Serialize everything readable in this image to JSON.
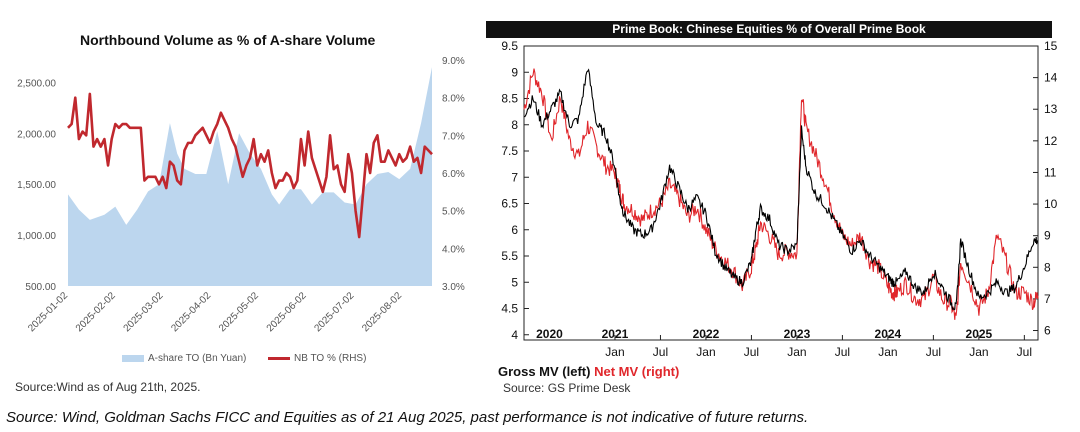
{
  "footer": {
    "note": "Source: Wind, Goldman Sachs FICC and Equities as of 21 Aug 2025, past performance is not indicative of future returns."
  },
  "colors": {
    "area_fill": "#bcd6ee",
    "nb_line": "#c0282e",
    "gross_line": "#000000",
    "net_line": "#e0262b"
  },
  "chart_data": [
    {
      "type": "area",
      "title": "Northbound Volume as % of A-share Volume",
      "source": "Source:Wind as of Aug 21th, 2025.",
      "x_tick_labels": [
        "2025-01-02",
        "2025-02-02",
        "2025-03-02",
        "2025-04-02",
        "2025-05-02",
        "2025-06-02",
        "2025-07-02",
        "2025-08-02"
      ],
      "y_left": {
        "ticks": [
          "500.00",
          "1,000.00",
          "1,500.00",
          "2,000.00",
          "2,500.00"
        ],
        "range": [
          500,
          2720
        ]
      },
      "y_right": {
        "ticks": [
          "3.0%",
          "4.0%",
          "5.0%",
          "6.0%",
          "7.0%",
          "8.0%",
          "9.0%"
        ],
        "range": [
          3.0,
          9.0
        ]
      },
      "series": [
        {
          "name": "A-share TO (Bn Yuan)",
          "type": "area",
          "axis": "left",
          "x": [
            0,
            3,
            6,
            10,
            13,
            16,
            19,
            22,
            25,
            28,
            30,
            32,
            35,
            38,
            41,
            44,
            47,
            50,
            53,
            56,
            58,
            61,
            64,
            67,
            70,
            73,
            76,
            79,
            82,
            85,
            88,
            91,
            94,
            97,
            100
          ],
          "values": [
            1400,
            1250,
            1150,
            1200,
            1280,
            1100,
            1250,
            1430,
            1500,
            2100,
            1800,
            1650,
            1600,
            1600,
            2020,
            1500,
            2000,
            1800,
            1650,
            1400,
            1300,
            1450,
            1450,
            1300,
            1420,
            1420,
            1320,
            1300,
            1500,
            1600,
            1620,
            1550,
            1650,
            2100,
            2650
          ]
        },
        {
          "name": "NB TO % (RHS)",
          "type": "line",
          "axis": "right",
          "x": [
            0,
            1,
            2,
            3,
            4,
            5,
            6,
            7,
            8,
            9,
            10,
            11,
            12,
            13,
            14,
            15,
            16,
            17,
            18,
            19,
            20,
            21,
            22,
            23,
            24,
            25,
            26,
            27,
            28,
            29,
            30,
            31,
            32,
            33,
            34,
            35,
            36,
            37,
            38,
            39,
            40,
            41,
            42,
            43,
            44,
            45,
            46,
            47,
            48,
            49,
            50,
            51,
            52,
            53,
            54,
            55,
            56,
            57,
            58,
            59,
            60,
            61,
            62,
            63,
            64,
            65,
            66,
            67,
            68,
            69,
            70,
            71,
            72,
            73,
            74,
            75,
            76,
            77,
            78,
            79,
            80,
            81,
            82,
            83,
            84,
            85,
            86,
            87,
            88,
            89,
            90,
            91,
            92,
            93,
            94,
            95,
            96,
            97,
            98,
            99,
            100
          ],
          "values": [
            7.2,
            7.3,
            8.0,
            6.9,
            7.1,
            7.0,
            8.1,
            6.7,
            6.9,
            6.7,
            6.9,
            6.2,
            6.9,
            7.3,
            7.2,
            7.3,
            7.3,
            7.2,
            7.2,
            7.2,
            7.2,
            5.8,
            5.9,
            5.9,
            5.9,
            5.7,
            5.9,
            5.6,
            6.3,
            6.2,
            5.8,
            5.7,
            6.6,
            6.8,
            6.8,
            7.0,
            7.1,
            7.2,
            7.0,
            6.8,
            7.1,
            7.3,
            7.6,
            7.4,
            7.2,
            6.9,
            6.7,
            6.3,
            5.9,
            6.2,
            6.4,
            6.9,
            6.2,
            6.5,
            6.3,
            6.6,
            6.0,
            5.6,
            5.8,
            5.8,
            6.0,
            5.9,
            5.6,
            5.8,
            6.9,
            6.2,
            7.1,
            6.4,
            6.1,
            5.8,
            5.5,
            5.9,
            7.0,
            6.1,
            6.2,
            5.7,
            5.5,
            6.5,
            6.0,
            5.0,
            4.3,
            5.4,
            6.5,
            6.0,
            6.8,
            7.0,
            6.3,
            6.3,
            6.6,
            6.4,
            6.2,
            6.5,
            6.3,
            6.4,
            6.7,
            6.3,
            6.4,
            6.0,
            6.7,
            6.6,
            6.5
          ]
        }
      ],
      "legend": [
        "A-share TO (Bn Yuan)",
        "NB TO % (RHS)"
      ]
    },
    {
      "type": "line",
      "title": "Prime Book: Chinese Equities % of Overall Prime Book",
      "source": "Source: GS Prime Desk",
      "y_left": {
        "ticks": [
          "4",
          "4.5",
          "5",
          "5.5",
          "6",
          "6.5",
          "7",
          "7.5",
          "8",
          "8.5",
          "9",
          "9.5"
        ],
        "range": [
          3.9,
          9.5
        ]
      },
      "y_right": {
        "ticks": [
          "6",
          "7",
          "8",
          "9",
          "10",
          "11",
          "12",
          "13",
          "14",
          "15"
        ],
        "range": [
          5.7,
          15
        ]
      },
      "x_month_labels": [
        "Jan",
        "Jul",
        "Jan",
        "Jul",
        "Jan",
        "Jul",
        "Jan",
        "Jul",
        "Jan",
        "Jul"
      ],
      "x_year_labels": [
        "2020",
        "2021",
        "2022",
        "2023",
        "2024",
        "2025"
      ],
      "x_range": [
        2020.0,
        2025.65
      ],
      "series": [
        {
          "name": "Gross MV (left)",
          "axis": "left",
          "x": [
            2020.0,
            2020.1,
            2020.2,
            2020.3,
            2020.4,
            2020.5,
            2020.6,
            2020.7,
            2020.8,
            2020.9,
            2021.0,
            2021.05,
            2021.1,
            2021.2,
            2021.3,
            2021.4,
            2021.5,
            2021.6,
            2021.7,
            2021.8,
            2021.9,
            2022.0,
            2022.1,
            2022.2,
            2022.3,
            2022.4,
            2022.5,
            2022.55,
            2022.6,
            2022.7,
            2022.8,
            2022.9,
            2023.0,
            2023.05,
            2023.1,
            2023.2,
            2023.3,
            2023.4,
            2023.5,
            2023.6,
            2023.7,
            2023.8,
            2023.9,
            2024.0,
            2024.05,
            2024.1,
            2024.2,
            2024.3,
            2024.4,
            2024.5,
            2024.6,
            2024.7,
            2024.75,
            2024.8,
            2024.9,
            2025.0,
            2025.1,
            2025.2,
            2025.3,
            2025.4,
            2025.5,
            2025.6,
            2025.65
          ],
          "values": [
            8.2,
            8.5,
            8.0,
            8.3,
            8.6,
            8.0,
            8.1,
            9.1,
            8.0,
            7.8,
            7.2,
            6.6,
            6.3,
            6.0,
            5.9,
            6.0,
            6.5,
            7.2,
            6.8,
            6.4,
            6.6,
            6.3,
            5.6,
            5.3,
            5.1,
            5.0,
            5.4,
            6.0,
            6.4,
            6.2,
            5.7,
            5.6,
            5.7,
            7.9,
            7.2,
            6.7,
            6.5,
            6.2,
            5.9,
            5.6,
            5.8,
            5.5,
            5.3,
            5.1,
            5.0,
            5.0,
            5.2,
            4.9,
            4.8,
            5.2,
            4.9,
            4.6,
            4.5,
            5.8,
            5.2,
            4.7,
            4.8,
            5.0,
            4.8,
            4.9,
            5.3,
            5.8,
            5.8
          ]
        },
        {
          "name": "Net MV (right)",
          "axis": "right",
          "x": [
            2020.0,
            2020.1,
            2020.2,
            2020.3,
            2020.4,
            2020.5,
            2020.6,
            2020.7,
            2020.8,
            2020.9,
            2021.0,
            2021.05,
            2021.1,
            2021.2,
            2021.3,
            2021.4,
            2021.5,
            2021.6,
            2021.7,
            2021.8,
            2021.9,
            2022.0,
            2022.1,
            2022.2,
            2022.3,
            2022.4,
            2022.5,
            2022.55,
            2022.6,
            2022.7,
            2022.8,
            2022.9,
            2023.0,
            2023.05,
            2023.1,
            2023.2,
            2023.3,
            2023.4,
            2023.5,
            2023.6,
            2023.7,
            2023.8,
            2023.9,
            2024.0,
            2024.05,
            2024.1,
            2024.2,
            2024.3,
            2024.4,
            2024.5,
            2024.6,
            2024.7,
            2024.75,
            2024.8,
            2024.9,
            2025.0,
            2025.1,
            2025.2,
            2025.3,
            2025.4,
            2025.5,
            2025.6,
            2025.65
          ],
          "values": [
            13.0,
            14.2,
            13.5,
            12.0,
            13.4,
            12.0,
            11.5,
            12.5,
            11.8,
            11.2,
            11.0,
            10.5,
            10.0,
            9.8,
            9.5,
            9.8,
            10.0,
            10.6,
            10.2,
            9.6,
            9.9,
            9.2,
            8.6,
            8.2,
            7.9,
            7.4,
            8.0,
            8.6,
            9.4,
            9.0,
            8.4,
            8.5,
            8.4,
            13.5,
            12.4,
            11.6,
            10.8,
            9.8,
            9.0,
            8.7,
            9.0,
            8.2,
            8.0,
            7.4,
            7.2,
            7.2,
            7.5,
            7.0,
            7.0,
            7.7,
            7.0,
            6.8,
            6.3,
            8.2,
            7.5,
            6.7,
            7.2,
            9.0,
            8.2,
            7.2,
            7.2,
            6.9,
            7.1
          ]
        }
      ],
      "legend_left": "Gross MV (left)",
      "legend_right": "Net MV (right)"
    }
  ]
}
